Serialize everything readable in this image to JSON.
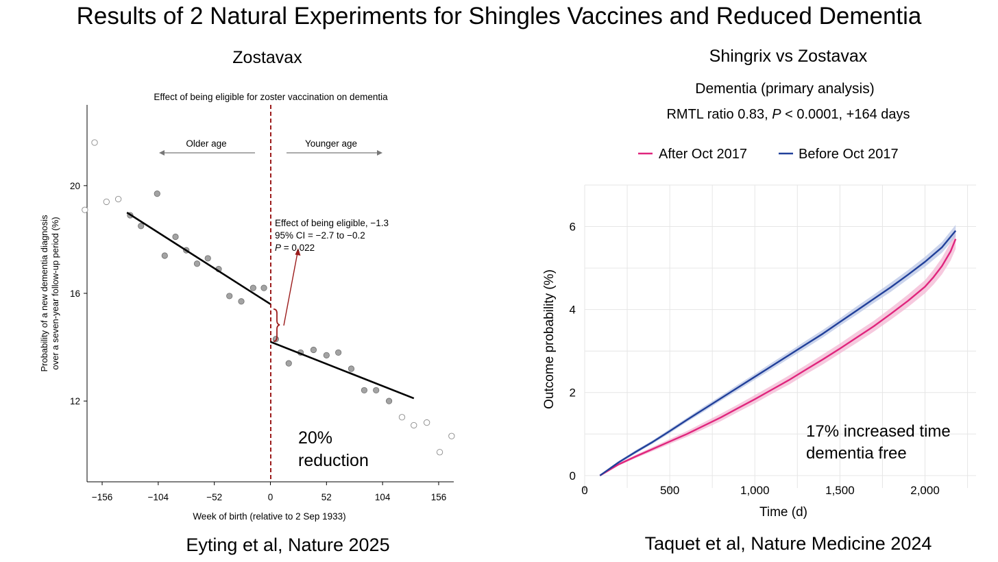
{
  "title": "Results of 2 Natural Experiments for Shingles Vaccines and Reduced  Dementia",
  "colors": {
    "cutoff_line": "#9b1b1b",
    "after_series": "#e0257d",
    "after_band": "#f3b7d3",
    "before_series": "#21409a",
    "before_band": "#b9c6e6",
    "regression_line": "#000000",
    "grid": "#e6e6e6"
  },
  "left_panel": {
    "heading": "Zostavax",
    "citation": "Eyting et al, Nature 2025",
    "callout": [
      "20%",
      "reduction"
    ]
  },
  "right_panel": {
    "heading": "Shingrix vs Zostavax",
    "subtitle": "Dementia (primary analysis)",
    "stats": {
      "prefix": "RMTL ratio 0.83, ",
      "p_symbol": "P",
      "rest": " < 0.0001, +164 days"
    },
    "citation": "Taquet et al, Nature Medicine 2024",
    "callout": [
      "17% increased time",
      "dementia free"
    ]
  },
  "chart_data": [
    {
      "type": "scatter",
      "title": "Effect of being eligible for zoster vaccination on dementia",
      "xlabel": "Week of birth (relative to 2 Sep 1933)",
      "ylabel": [
        "Probability of a new dementia diagnosis",
        "over a seven-year follow-up period (%)"
      ],
      "xlim": [
        -170,
        170
      ],
      "ylim": [
        9,
        23
      ],
      "xticks": [
        -156,
        -104,
        -52,
        0,
        52,
        104,
        156
      ],
      "yticks": [
        12,
        16,
        20
      ],
      "xtick_labels": [
        "−156",
        "−104",
        "−52",
        "0",
        "52",
        "104",
        "156"
      ],
      "ytick_labels": [
        "12",
        "16",
        "20"
      ],
      "grid": false,
      "cutoff": 0,
      "direction_labels": {
        "left": "Older age",
        "right": "Younger age"
      },
      "annotation": {
        "line1": "Effect of being eligible, −1.3",
        "line2": "95% CI = −2.7 to −0.2",
        "line3_symbol": "P",
        "line3_rest": " = 0.022"
      },
      "regression_lines": [
        {
          "x": [
            -133,
            0
          ],
          "y": [
            19.0,
            15.6
          ]
        },
        {
          "x": [
            0,
            133
          ],
          "y": [
            14.2,
            12.1
          ]
        }
      ],
      "points_outside_window": [
        {
          "x": -172,
          "y": 19.1
        },
        {
          "x": -163,
          "y": 21.6
        },
        {
          "x": -152,
          "y": 19.4
        },
        {
          "x": -141,
          "y": 19.5
        },
        {
          "x": 122,
          "y": 11.4
        },
        {
          "x": 133,
          "y": 11.1
        },
        {
          "x": 145,
          "y": 11.2
        },
        {
          "x": 157,
          "y": 10.1
        },
        {
          "x": 168,
          "y": 10.7
        }
      ],
      "points_inside_window": [
        {
          "x": -130,
          "y": 18.9
        },
        {
          "x": -120,
          "y": 18.5
        },
        {
          "x": -105,
          "y": 19.7
        },
        {
          "x": -98,
          "y": 17.4
        },
        {
          "x": -88,
          "y": 18.1
        },
        {
          "x": -78,
          "y": 17.6
        },
        {
          "x": -68,
          "y": 17.1
        },
        {
          "x": -58,
          "y": 17.3
        },
        {
          "x": -48,
          "y": 16.9
        },
        {
          "x": -38,
          "y": 15.9
        },
        {
          "x": -27,
          "y": 15.7
        },
        {
          "x": -16,
          "y": 16.2
        },
        {
          "x": -6,
          "y": 16.2
        },
        {
          "x": 5,
          "y": 14.3
        },
        {
          "x": 17,
          "y": 13.4
        },
        {
          "x": 28,
          "y": 13.8
        },
        {
          "x": 40,
          "y": 13.9
        },
        {
          "x": 52,
          "y": 13.7
        },
        {
          "x": 63,
          "y": 13.8
        },
        {
          "x": 75,
          "y": 13.2
        },
        {
          "x": 87,
          "y": 12.4
        },
        {
          "x": 98,
          "y": 12.4
        },
        {
          "x": 110,
          "y": 12.0
        }
      ]
    },
    {
      "type": "line",
      "xlabel": "Time (d)",
      "ylabel": "Outcome probability (%)",
      "xlim": [
        0,
        2300
      ],
      "ylim": [
        -0.3,
        7.0
      ],
      "xticks": [
        0,
        500,
        1000,
        1500,
        2000
      ],
      "yticks": [
        0,
        2,
        4,
        6
      ],
      "xtick_labels": [
        "0",
        "500",
        "1,000",
        "1,500",
        "2,000"
      ],
      "ytick_labels": [
        "0",
        "2",
        "4",
        "6"
      ],
      "grid": true,
      "legend_position": "top",
      "series": [
        {
          "name": "After Oct 2017",
          "x": [
            90,
            200,
            300,
            400,
            500,
            600,
            700,
            800,
            900,
            1000,
            1100,
            1200,
            1300,
            1400,
            1500,
            1600,
            1700,
            1800,
            1900,
            2000,
            2050,
            2100,
            2150,
            2180
          ],
          "y": [
            0.0,
            0.27,
            0.46,
            0.64,
            0.82,
            1.0,
            1.2,
            1.4,
            1.62,
            1.84,
            2.07,
            2.3,
            2.55,
            2.8,
            3.06,
            3.33,
            3.6,
            3.9,
            4.21,
            4.55,
            4.78,
            5.05,
            5.4,
            5.7
          ],
          "band": [
            0.02,
            0.03,
            0.04,
            0.05,
            0.06,
            0.07,
            0.08,
            0.09,
            0.09,
            0.1,
            0.1,
            0.11,
            0.11,
            0.12,
            0.12,
            0.13,
            0.13,
            0.14,
            0.15,
            0.16,
            0.18,
            0.2,
            0.22,
            0.24
          ]
        },
        {
          "name": "Before Oct 2017",
          "x": [
            90,
            200,
            300,
            400,
            500,
            600,
            700,
            800,
            900,
            1000,
            1100,
            1200,
            1300,
            1400,
            1500,
            1600,
            1700,
            1800,
            1900,
            2000,
            2100,
            2180
          ],
          "y": [
            0.0,
            0.32,
            0.57,
            0.81,
            1.07,
            1.34,
            1.6,
            1.86,
            2.12,
            2.38,
            2.64,
            2.9,
            3.16,
            3.42,
            3.7,
            3.98,
            4.26,
            4.54,
            4.84,
            5.15,
            5.5,
            5.9
          ],
          "band": [
            0.02,
            0.03,
            0.04,
            0.04,
            0.05,
            0.05,
            0.06,
            0.06,
            0.07,
            0.07,
            0.08,
            0.08,
            0.09,
            0.09,
            0.09,
            0.1,
            0.1,
            0.11,
            0.11,
            0.12,
            0.13,
            0.14
          ]
        }
      ]
    }
  ]
}
